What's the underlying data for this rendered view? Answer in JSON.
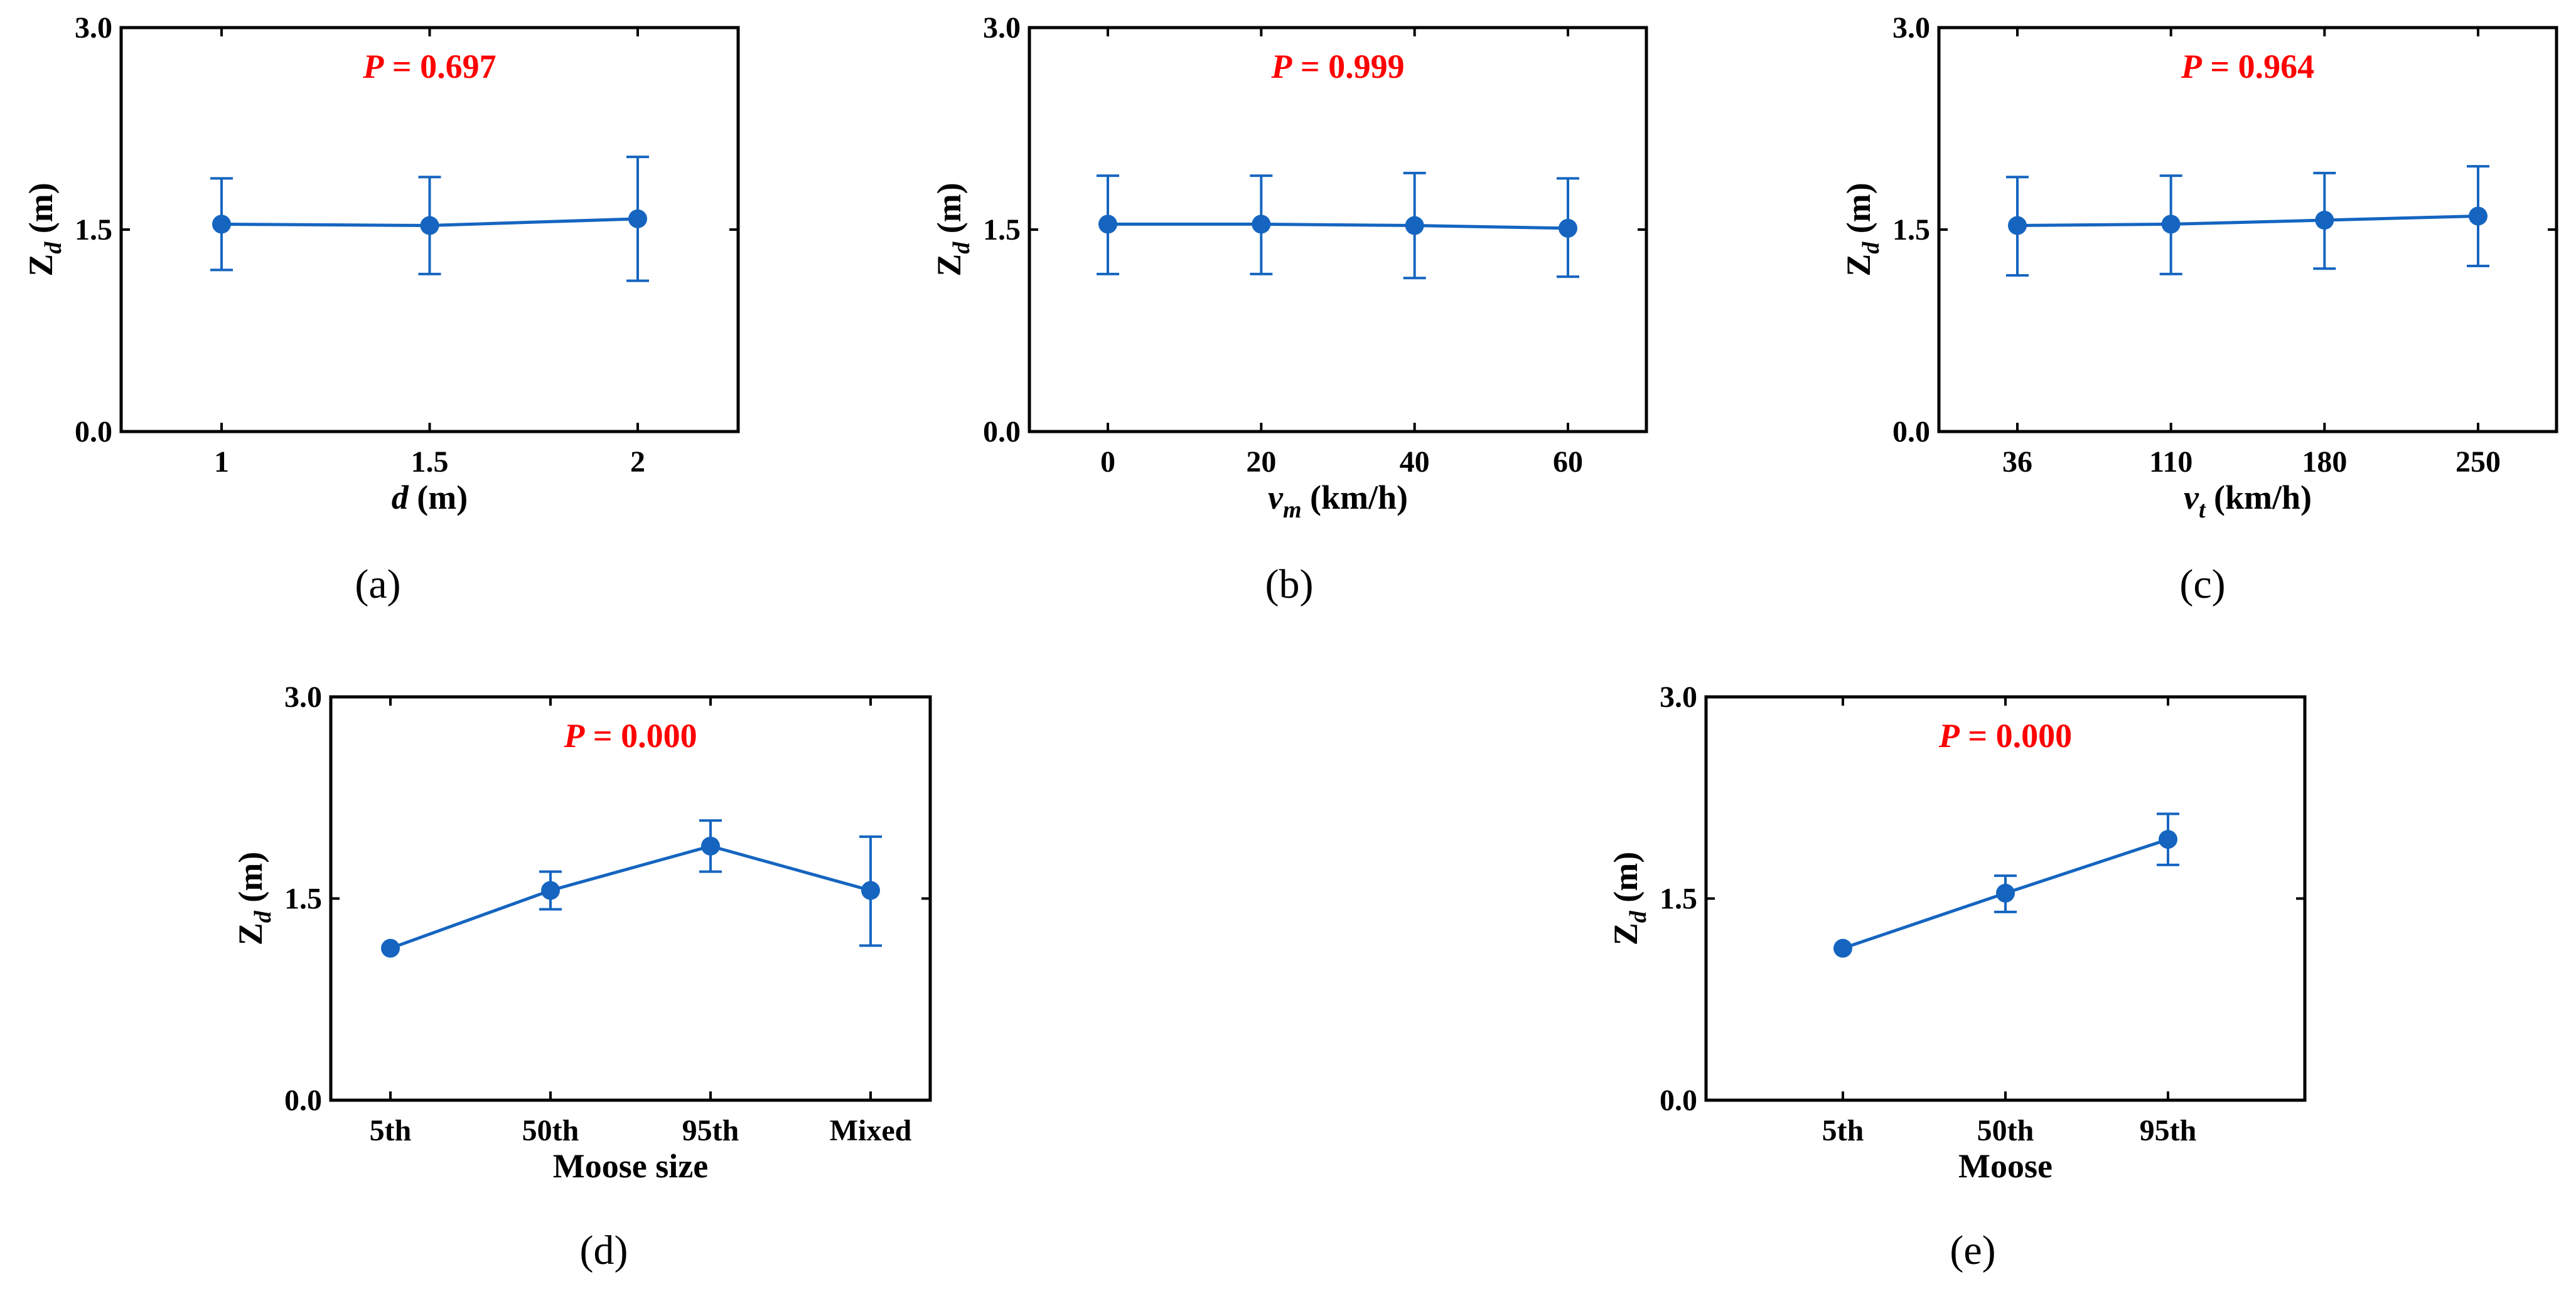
{
  "styles": {
    "series_color": "#1565C0",
    "annotation_color": "#FF0000",
    "axis_color": "#000000"
  },
  "chart_data": [
    {
      "id": "a",
      "type": "line",
      "caption": "(a)",
      "annotation_prefix": "P",
      "annotation_value": " = 0.697",
      "ylabel_main": "Z",
      "ylabel_sub": "d",
      "ylabel_unit": " (m)",
      "xlabel_main": "d",
      "xlabel_sub": "",
      "xlabel_unit": " (m)",
      "ylim": [
        0,
        3
      ],
      "yticks": [
        "0.0",
        "1.5",
        "3.0"
      ],
      "categories": [
        "1",
        "1.5",
        "2"
      ],
      "values": [
        1.54,
        1.53,
        1.58
      ],
      "err_upper": [
        1.88,
        1.89,
        2.04
      ],
      "err_lower": [
        1.2,
        1.17,
        1.12
      ],
      "cap_on_lower": [
        true,
        true,
        true
      ]
    },
    {
      "id": "b",
      "type": "line",
      "caption": "(b)",
      "annotation_prefix": "P",
      "annotation_value": " = 0.999",
      "ylabel_main": "Z",
      "ylabel_sub": "d",
      "ylabel_unit": " (m)",
      "xlabel_main": "v",
      "xlabel_sub": "m",
      "xlabel_unit": " (km/h)",
      "ylim": [
        0,
        3
      ],
      "yticks": [
        "0.0",
        "1.5",
        "3.0"
      ],
      "categories": [
        "0",
        "20",
        "40",
        "60"
      ],
      "values": [
        1.54,
        1.54,
        1.53,
        1.51
      ],
      "err_upper": [
        1.9,
        1.9,
        1.92,
        1.88
      ],
      "err_lower": [
        1.17,
        1.17,
        1.14,
        1.15
      ],
      "cap_on_lower": [
        true,
        true,
        true,
        true
      ]
    },
    {
      "id": "c",
      "type": "line",
      "caption": "(c)",
      "annotation_prefix": "P",
      "annotation_value": " = 0.964",
      "ylabel_main": "Z",
      "ylabel_sub": "d",
      "ylabel_unit": " (m)",
      "xlabel_main": "v",
      "xlabel_sub": "t",
      "xlabel_unit": " (km/h)",
      "ylim": [
        0,
        3
      ],
      "yticks": [
        "0.0",
        "1.5",
        "3.0"
      ],
      "categories": [
        "36",
        "110",
        "180",
        "250"
      ],
      "values": [
        1.53,
        1.54,
        1.57,
        1.6
      ],
      "err_upper": [
        1.89,
        1.9,
        1.92,
        1.97
      ],
      "err_lower": [
        1.16,
        1.17,
        1.21,
        1.23
      ],
      "cap_on_lower": [
        true,
        true,
        true,
        true
      ]
    },
    {
      "id": "d",
      "type": "line",
      "caption": "(d)",
      "annotation_prefix": "P",
      "annotation_value": " = 0.000",
      "ylabel_main": "Z",
      "ylabel_sub": "d",
      "ylabel_unit": " (m)",
      "xlabel_main": "Moose size",
      "xlabel_sub": "",
      "xlabel_unit": "",
      "ylim": [
        0,
        3
      ],
      "yticks": [
        "0.0",
        "1.5",
        "3.0"
      ],
      "categories": [
        "5th",
        "50th",
        "95th",
        "Mixed"
      ],
      "values": [
        1.13,
        1.56,
        1.89,
        1.56
      ],
      "err_upper": [
        1.13,
        1.7,
        2.08,
        1.96
      ],
      "err_lower": [
        1.13,
        1.42,
        1.7,
        1.15
      ],
      "cap_on_lower": [
        false,
        true,
        true,
        true
      ]
    },
    {
      "id": "e",
      "type": "line",
      "caption": "(e)",
      "annotation_prefix": "P",
      "annotation_value": " = 0.000",
      "ylabel_main": "Z",
      "ylabel_sub": "d",
      "ylabel_unit": " (m)",
      "xlabel_main": "Moose",
      "xlabel_sub": "",
      "xlabel_unit": "",
      "ylim": [
        0,
        3
      ],
      "yticks": [
        "0.0",
        "1.5",
        "3.0"
      ],
      "categories": [
        "5th",
        "50th",
        "95th"
      ],
      "values": [
        1.13,
        1.54,
        1.94
      ],
      "err_upper": [
        1.13,
        1.67,
        2.13
      ],
      "err_lower": [
        1.13,
        1.4,
        1.75
      ],
      "cap_on_lower": [
        false,
        true,
        true
      ]
    }
  ]
}
